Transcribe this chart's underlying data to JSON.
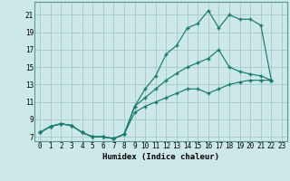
{
  "xlabel": "Humidex (Indice chaleur)",
  "bg_color": "#cce8e8",
  "grid_color": "#aacccc",
  "line_color": "#1a7a6e",
  "xlim": [
    -0.5,
    23.5
  ],
  "ylim": [
    6.5,
    22.5
  ],
  "xticks": [
    0,
    1,
    2,
    3,
    4,
    5,
    6,
    7,
    8,
    9,
    10,
    11,
    12,
    13,
    14,
    15,
    16,
    17,
    18,
    19,
    20,
    21,
    22,
    23
  ],
  "yticks": [
    7,
    9,
    11,
    13,
    15,
    17,
    19,
    21
  ],
  "line_top_x": [
    0,
    1,
    2,
    3,
    4,
    5,
    6,
    7,
    8,
    9,
    10,
    11,
    12,
    13,
    14,
    15,
    16,
    17,
    18,
    19,
    20,
    21,
    22
  ],
  "line_top_y": [
    7.5,
    8.2,
    8.5,
    8.3,
    7.5,
    7.0,
    7.0,
    6.8,
    7.3,
    10.5,
    12.5,
    14.0,
    16.5,
    17.5,
    19.5,
    20.0,
    21.5,
    19.5,
    21.0,
    20.5,
    20.5,
    19.8,
    13.5
  ],
  "line_mid_x": [
    0,
    1,
    2,
    3,
    4,
    5,
    6,
    7,
    8,
    9,
    10,
    11,
    12,
    13,
    14,
    15,
    16,
    17,
    18,
    19,
    20,
    21,
    22
  ],
  "line_mid_y": [
    7.5,
    8.2,
    8.5,
    8.3,
    7.5,
    7.0,
    7.0,
    6.8,
    7.3,
    10.5,
    11.5,
    12.5,
    13.5,
    14.3,
    15.0,
    15.5,
    16.0,
    17.0,
    15.0,
    14.5,
    14.2,
    14.0,
    13.5
  ],
  "line_bot_x": [
    0,
    1,
    2,
    3,
    4,
    5,
    6,
    7,
    8,
    9,
    10,
    11,
    12,
    13,
    14,
    15,
    16,
    17,
    18,
    19,
    20,
    21,
    22
  ],
  "line_bot_y": [
    7.5,
    8.2,
    8.5,
    8.3,
    7.5,
    7.0,
    7.0,
    6.8,
    7.3,
    9.8,
    10.5,
    11.0,
    11.5,
    12.0,
    12.5,
    12.5,
    12.0,
    12.5,
    13.0,
    13.3,
    13.5,
    13.5,
    13.5
  ]
}
